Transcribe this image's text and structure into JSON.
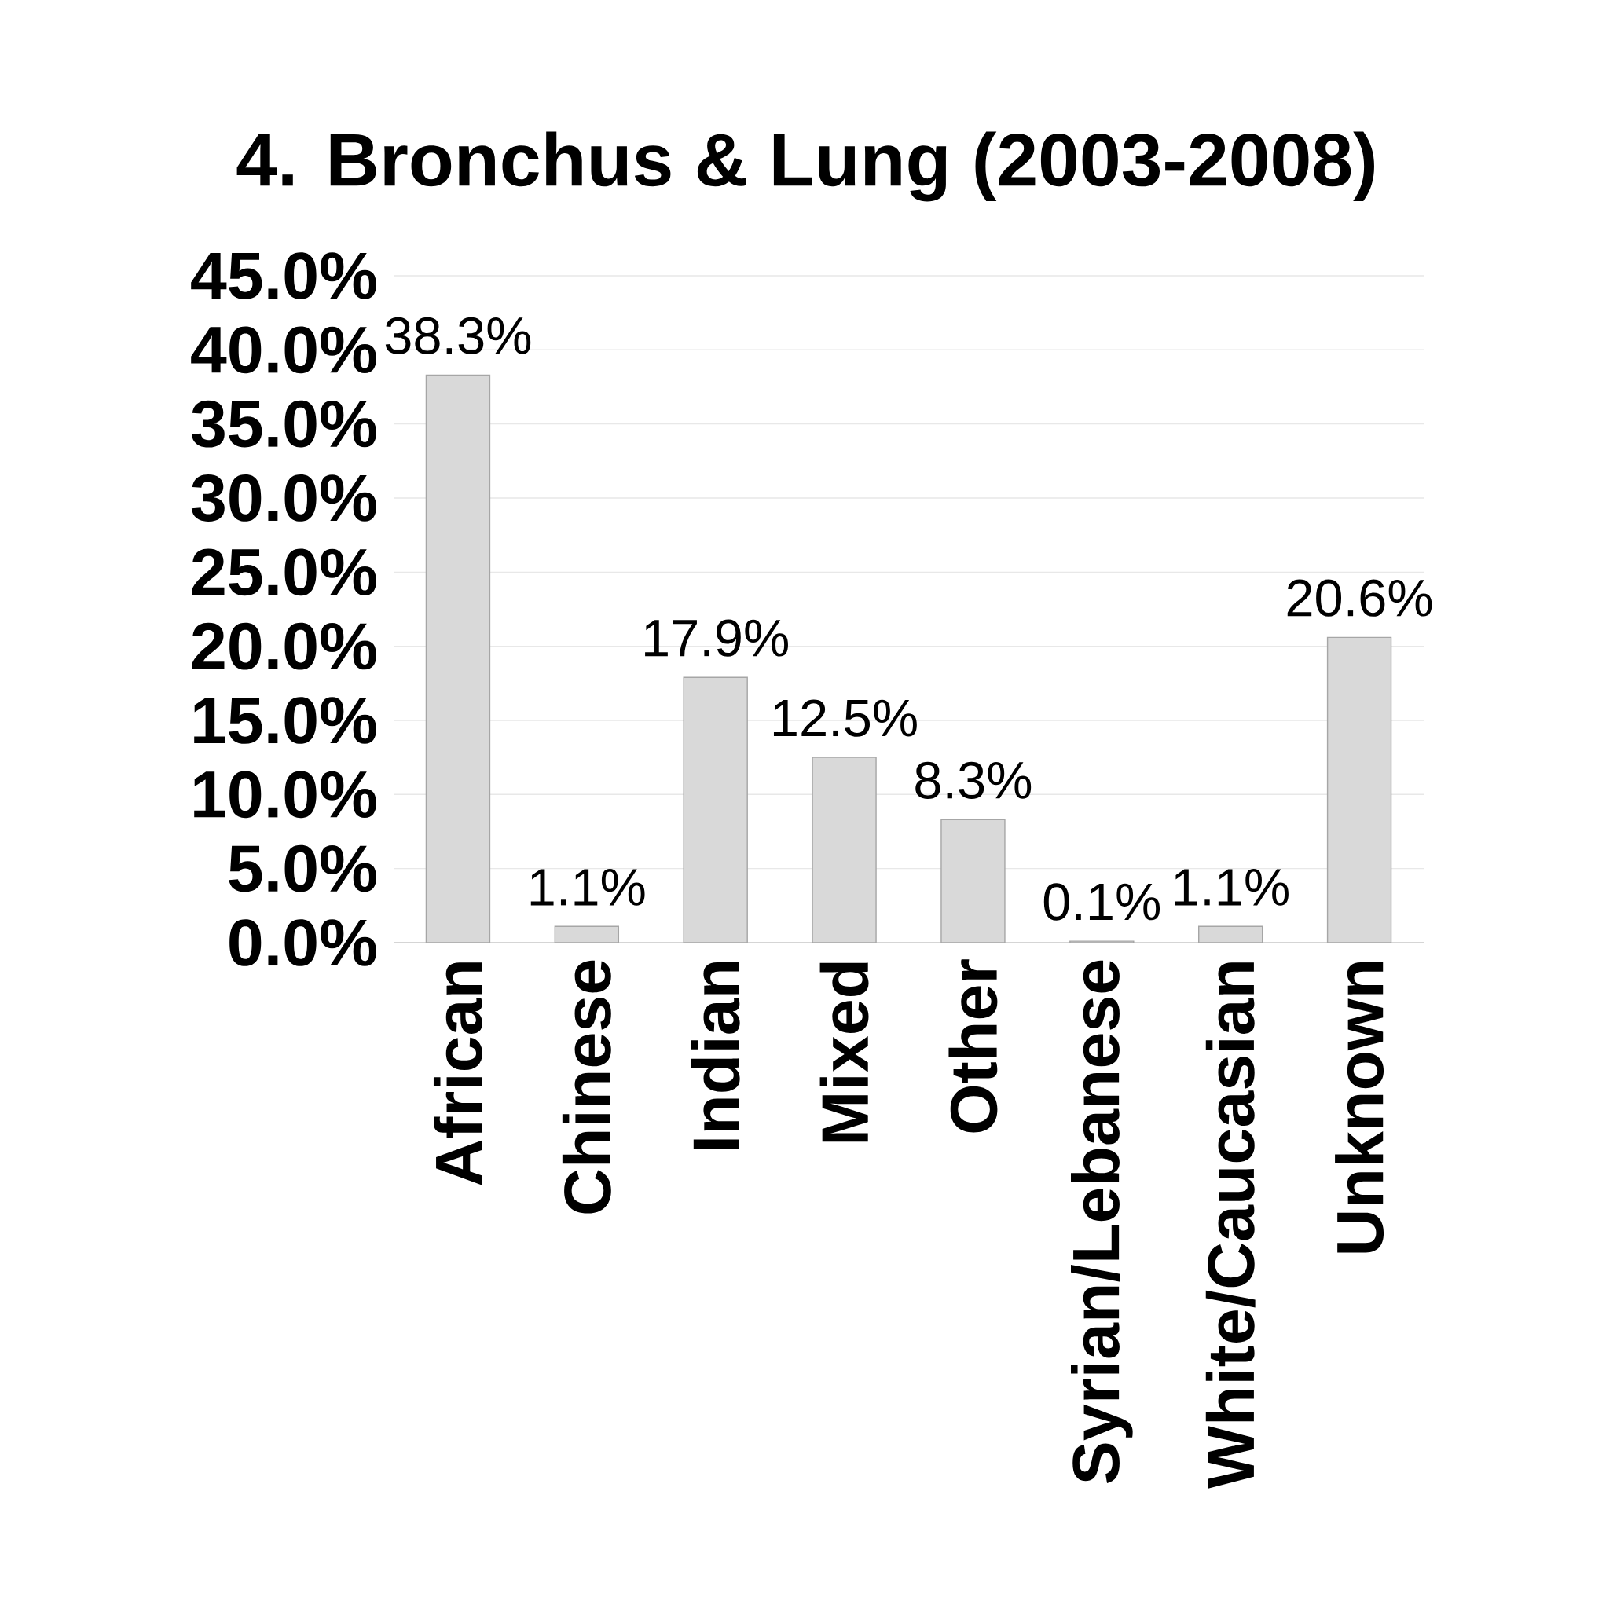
{
  "chart_data": {
    "type": "bar",
    "title": "4. Bronchus & Lung (2003-2008)",
    "categories": [
      "African",
      "Chinese",
      "Indian",
      "Mixed",
      "Other",
      "Syrian/Lebanese",
      "White/Caucasian",
      "Unknown"
    ],
    "values": [
      38.3,
      1.1,
      17.9,
      12.5,
      8.3,
      0.1,
      1.1,
      20.6
    ],
    "value_labels": [
      "38.3%",
      "1.1%",
      "17.9%",
      "12.5%",
      "8.3%",
      "0.1%",
      "1.1%",
      "20.6%"
    ],
    "color": "#d9d9d9",
    "ylim": [
      0,
      45
    ],
    "yticks": [
      {
        "value": 0,
        "label": "0.0%"
      },
      {
        "value": 5,
        "label": "5.0%"
      },
      {
        "value": 10,
        "label": "10.0%"
      },
      {
        "value": 15,
        "label": "15.0%"
      },
      {
        "value": 20,
        "label": "20.0%"
      },
      {
        "value": 25,
        "label": "25.0%"
      },
      {
        "value": 30,
        "label": "30.0%"
      },
      {
        "value": 35,
        "label": "35.0%"
      },
      {
        "value": 40,
        "label": "40.0%"
      },
      {
        "value": 45,
        "label": "45.0%"
      }
    ],
    "grid": "y"
  }
}
